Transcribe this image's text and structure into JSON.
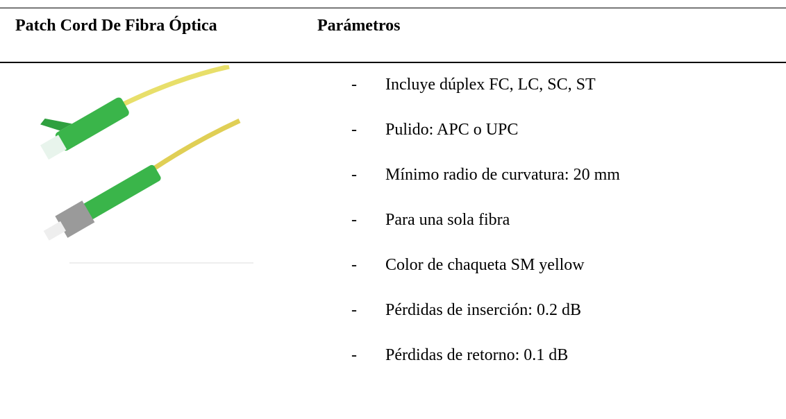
{
  "table": {
    "header": [
      "Patch Cord De Fibra Óptica",
      "Parámetros"
    ],
    "marker": "-",
    "items": [
      "Incluye dúplex FC, LC, SC, ST",
      "Pulido: APC o UPC",
      "Mínimo radio de curvatura: 20 mm",
      "Para una sola fibra",
      "Color de chaqueta SM yellow",
      "Pérdidas de inserción: 0.2 dB",
      "Pérdidas de retorno: 0.1 dB"
    ]
  }
}
